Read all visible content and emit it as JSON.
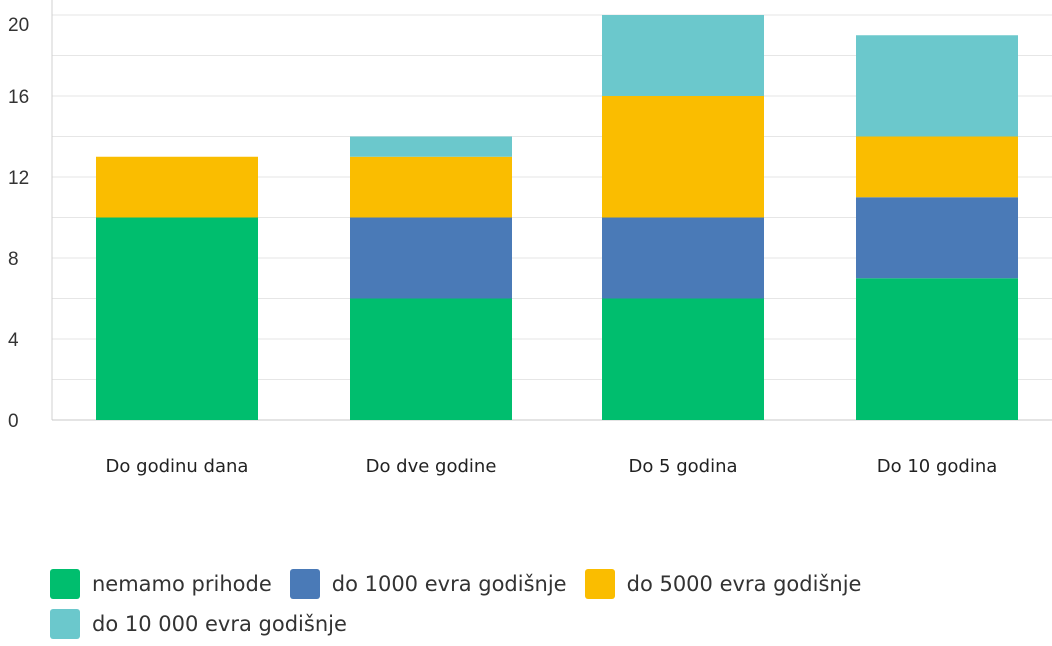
{
  "chart_data": {
    "type": "bar",
    "stacked": true,
    "categories": [
      "Do godinu dana",
      "Do dve godine",
      "Do 5 godina",
      "Do 10 godina"
    ],
    "series": [
      {
        "name": "nemamo prihode",
        "color": "#00be6e",
        "values": [
          10,
          6,
          6,
          7
        ]
      },
      {
        "name": "do 1000 evra godišnje",
        "color": "#4a7ab7",
        "values": [
          0,
          4,
          4,
          4
        ]
      },
      {
        "name": "do 5000 evra godišnje",
        "color": "#fabd00",
        "values": [
          3,
          3,
          6,
          3
        ]
      },
      {
        "name": "do 10 000 evra godišnje",
        "color": "#6bc8cc",
        "values": [
          0,
          1,
          4,
          5
        ]
      }
    ],
    "yticks": [
      "0",
      "4",
      "8",
      "12",
      "16",
      "20"
    ],
    "ylim": [
      0,
      20
    ],
    "grid": true,
    "legend_position": "bottom-left"
  }
}
